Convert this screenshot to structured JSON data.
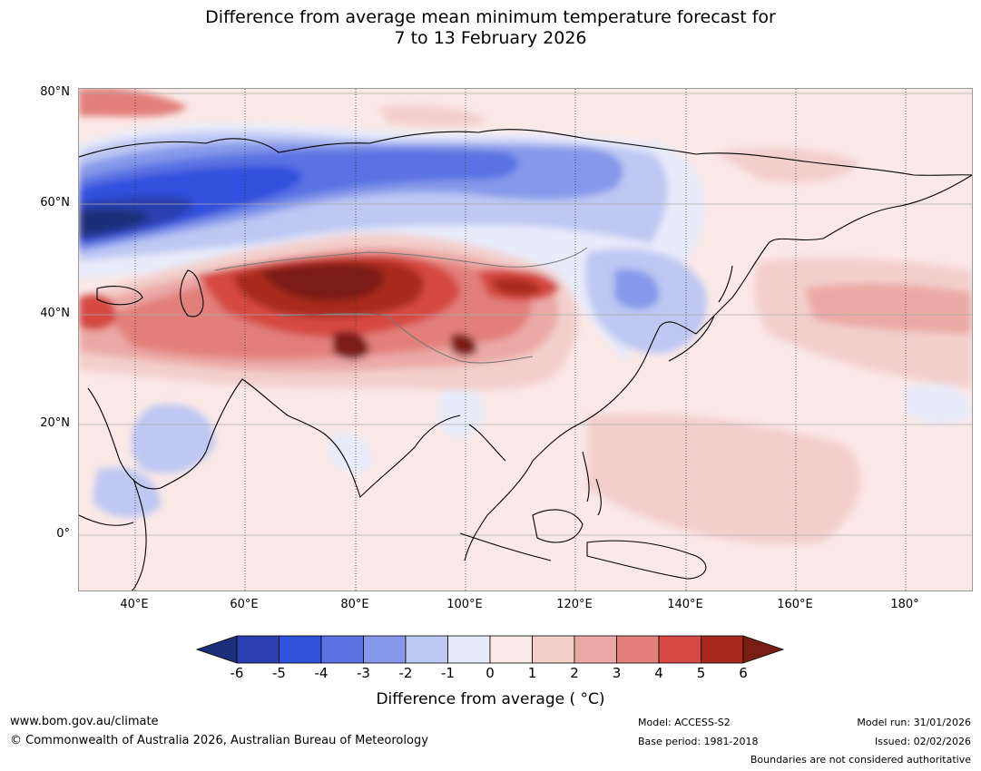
{
  "title": {
    "line1": "Difference from average mean minimum temperature forecast for",
    "line2": "7 to 13 February 2026"
  },
  "map": {
    "region": "Asia",
    "lat_labels": [
      "80°N",
      "60°N",
      "40°N",
      "20°N",
      "0°"
    ],
    "lon_labels": [
      "40°E",
      "60°E",
      "80°E",
      "100°E",
      "120°E",
      "140°E",
      "160°E",
      "180°"
    ]
  },
  "colorbar": {
    "ticks": [
      "-6",
      "-5",
      "-4",
      "-3",
      "-2",
      "-1",
      "0",
      "1",
      "2",
      "3",
      "4",
      "5",
      "6"
    ],
    "colors": [
      "#1c2f7a",
      "#2a3fb0",
      "#3050de",
      "#5a72e2",
      "#8598ea",
      "#bec8f3",
      "#e8ebfa",
      "#fbe9e7",
      "#f3cfcc",
      "#eba9a6",
      "#e27f7a",
      "#d64a43",
      "#a9291f",
      "#7b1d17"
    ],
    "label": "Difference from average ( °C)"
  },
  "footer": {
    "website": "www.bom.gov.au/climate",
    "copyright": "© Commonwealth of Australia 2026, Australian Bureau of Meteorology",
    "model": "Model: ACCESS-S2",
    "base_period": "Base period: 1981-2018",
    "model_run": "Model run: 31/01/2026",
    "issued": "Issued: 02/02/2026",
    "disclaimer": "Boundaries are not considered authoritative"
  }
}
